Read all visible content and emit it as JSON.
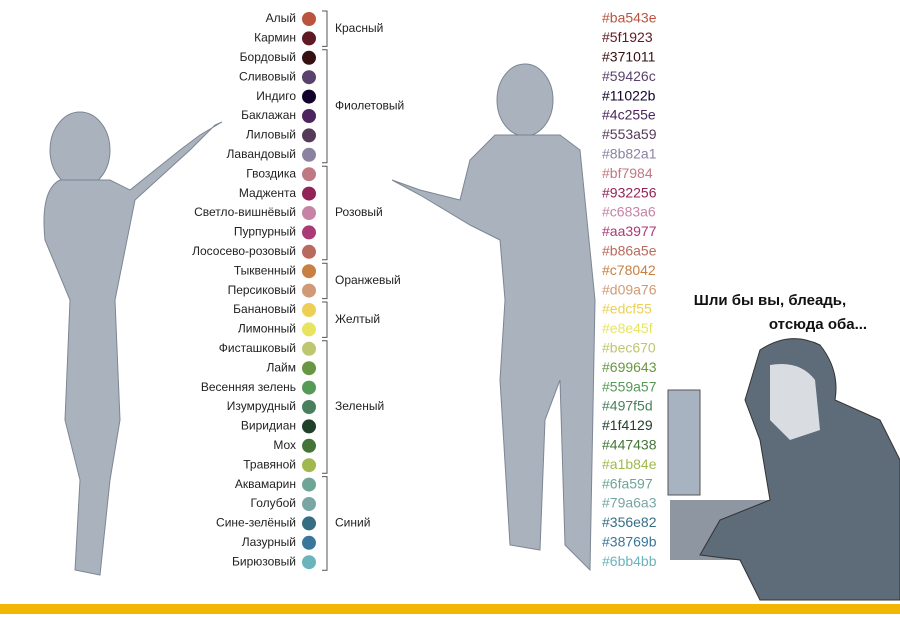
{
  "groups": [
    {
      "label": "Красный",
      "colors": [
        {
          "name": "Алый",
          "code": "#ba543e"
        },
        {
          "name": "Кармин",
          "code": "#5f1923"
        }
      ]
    },
    {
      "label": "Фиолетовый",
      "colors": [
        {
          "name": "Бордовый",
          "code": "#371011"
        },
        {
          "name": "Сливовый",
          "code": "#59426c"
        },
        {
          "name": "Индиго",
          "code": "#11022b"
        },
        {
          "name": "Баклажан",
          "code": "#4c255e"
        },
        {
          "name": "Лиловый",
          "code": "#553a59"
        },
        {
          "name": "Лавандовый",
          "code": "#8b82a1"
        }
      ]
    },
    {
      "label": "Розовый",
      "colors": [
        {
          "name": "Гвоздика",
          "code": "#bf7984"
        },
        {
          "name": "Маджента",
          "code": "#932256"
        },
        {
          "name": "Светло-вишнёвый",
          "code": "#c683a6"
        },
        {
          "name": "Пурпурный",
          "code": "#aa3977"
        },
        {
          "name": "Лососево-розовый",
          "code": "#b86a5e"
        }
      ]
    },
    {
      "label": "Оранжевый",
      "colors": [
        {
          "name": "Тыквенный",
          "code": "#c78042"
        },
        {
          "name": "Персиковый",
          "code": "#d09a76"
        }
      ]
    },
    {
      "label": "Желтый",
      "colors": [
        {
          "name": "Банановый",
          "code": "#edcf55"
        },
        {
          "name": "Лимонный",
          "code": "#e8e45f"
        }
      ]
    },
    {
      "label": "Зеленый",
      "colors": [
        {
          "name": "Фисташковый",
          "code": "#bec670"
        },
        {
          "name": "Лайм",
          "code": "#699643"
        },
        {
          "name": "Весенняя зелень",
          "code": "#559a57"
        },
        {
          "name": "Изумрудный",
          "code": "#497f5d"
        },
        {
          "name": "Виридиан",
          "code": "#1f4129"
        },
        {
          "name": "Мох",
          "code": "#447438"
        },
        {
          "name": "Травяной",
          "code": "#a1b84e"
        }
      ]
    },
    {
      "label": "Синий",
      "colors": [
        {
          "name": "Аквамарин",
          "code": "#6fa597"
        },
        {
          "name": "Голубой",
          "code": "#79a6a3"
        },
        {
          "name": "Сине-зелёный",
          "code": "#356e82"
        },
        {
          "name": "Лазурный",
          "code": "#38769b"
        },
        {
          "name": "Бирюзовый",
          "code": "#6bb4bb"
        }
      ]
    }
  ],
  "caption": [
    "Шли бы вы, блеадь,",
    "отсюда оба..."
  ]
}
